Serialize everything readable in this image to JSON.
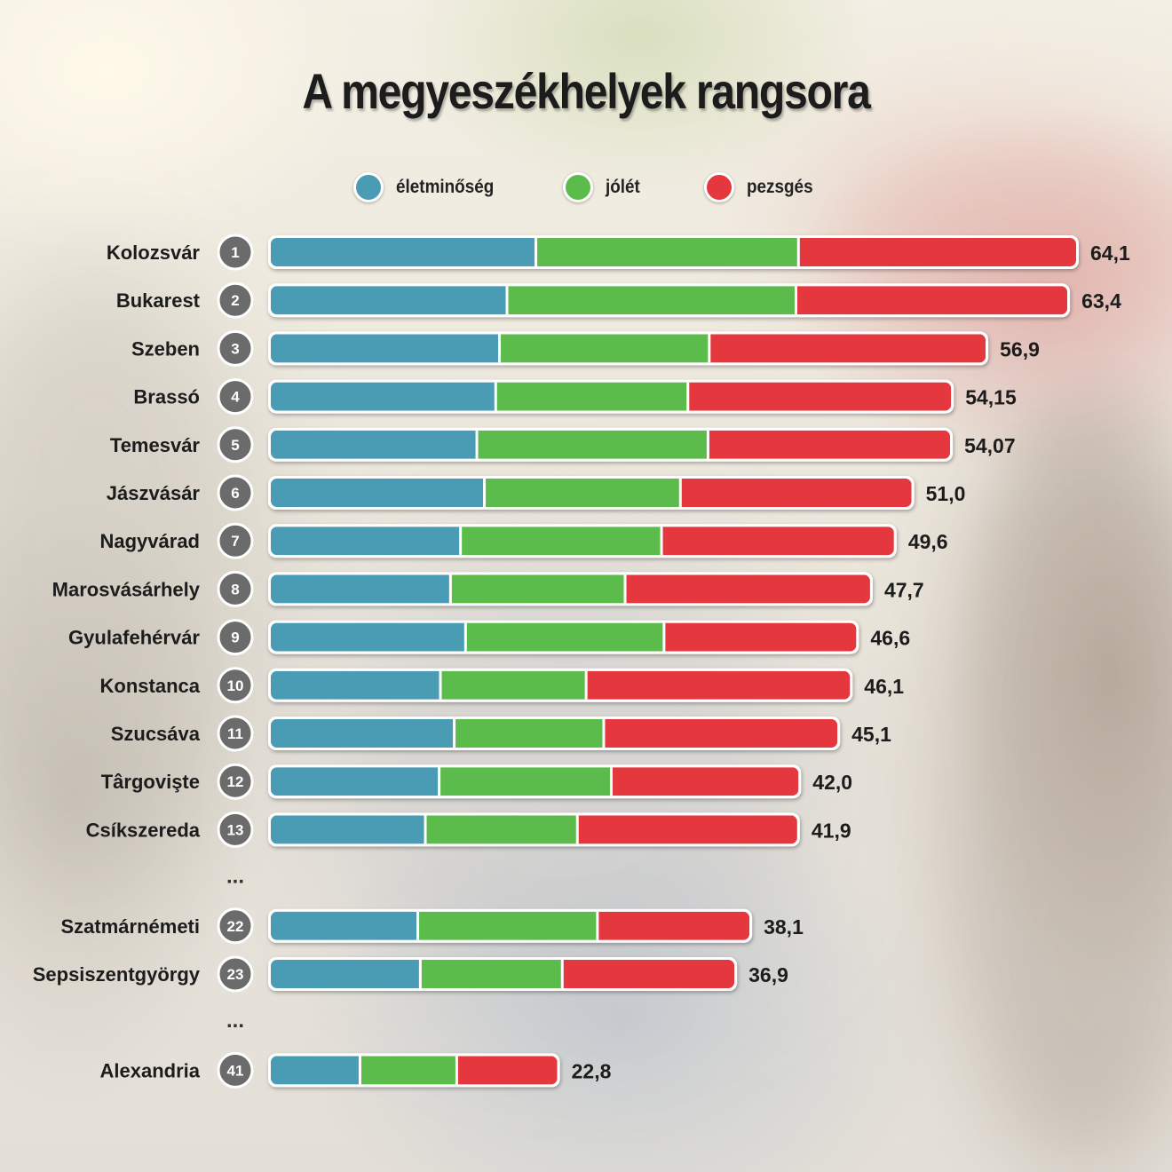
{
  "colors": {
    "eletminoseg": "#4a9cb5",
    "jolet": "#5cbc4b",
    "pezsges": "#e4373e",
    "rank_badge": "#6b6b6b"
  },
  "chart_data": {
    "type": "bar",
    "orientation": "horizontal",
    "stacked": true,
    "title": "A megyeszékhelyek rangsora",
    "legend": {
      "placement": "top",
      "entries": [
        "életminőség",
        "jólét",
        "pezsgés"
      ]
    },
    "xlim": [
      0,
      64.1
    ],
    "grid": false,
    "ellipsis_marker": "...",
    "rows": [
      {
        "rank": "1",
        "city": "Kolozsvár",
        "segments": [
          21.1,
          20.9,
          22.1
        ],
        "total_label": "64,1"
      },
      {
        "rank": "2",
        "city": "Bukarest",
        "segments": [
          18.8,
          23.0,
          21.6
        ],
        "total_label": "63,4"
      },
      {
        "rank": "3",
        "city": "Szeben",
        "segments": [
          18.2,
          16.7,
          22.0
        ],
        "total_label": "56,9"
      },
      {
        "rank": "4",
        "city": "Brassó",
        "segments": [
          17.9,
          15.3,
          20.95
        ],
        "total_label": "54,15"
      },
      {
        "rank": "5",
        "city": "Temesvár",
        "segments": [
          16.4,
          18.4,
          19.27
        ],
        "total_label": "54,07"
      },
      {
        "rank": "6",
        "city": "Jászvásár",
        "segments": [
          17.0,
          15.6,
          18.4
        ],
        "total_label": "51,0"
      },
      {
        "rank": "7",
        "city": "Nagyvárad",
        "segments": [
          15.1,
          16.0,
          18.5
        ],
        "total_label": "49,6"
      },
      {
        "rank": "8",
        "city": "Marosvásárhely",
        "segments": [
          14.3,
          13.9,
          19.5
        ],
        "total_label": "47,7"
      },
      {
        "rank": "9",
        "city": "Gyulafehérvár",
        "segments": [
          15.5,
          15.8,
          15.3
        ],
        "total_label": "46,6"
      },
      {
        "rank": "10",
        "city": "Konstanca",
        "segments": [
          13.5,
          11.6,
          21.0
        ],
        "total_label": "46,1"
      },
      {
        "rank": "11",
        "city": "Szucsáva",
        "segments": [
          14.6,
          11.9,
          18.6
        ],
        "total_label": "45,1"
      },
      {
        "rank": "12",
        "city": "Târgovişte",
        "segments": [
          13.4,
          13.7,
          14.9
        ],
        "total_label": "42,0"
      },
      {
        "rank": "13",
        "city": "Csíkszereda",
        "segments": [
          12.3,
          12.1,
          17.5
        ],
        "total_label": "41,9"
      },
      {
        "gap": true
      },
      {
        "rank": "22",
        "city": "Szatmárnémeti",
        "segments": [
          11.7,
          14.3,
          12.1
        ],
        "total_label": "38,1"
      },
      {
        "rank": "23",
        "city": "Sepsiszentgyörgy",
        "segments": [
          11.9,
          11.3,
          13.7
        ],
        "total_label": "36,9"
      },
      {
        "gap": true
      },
      {
        "rank": "41",
        "city": "Alexandria",
        "segments": [
          7.1,
          7.7,
          8.0
        ],
        "total_label": "22,8"
      }
    ]
  }
}
